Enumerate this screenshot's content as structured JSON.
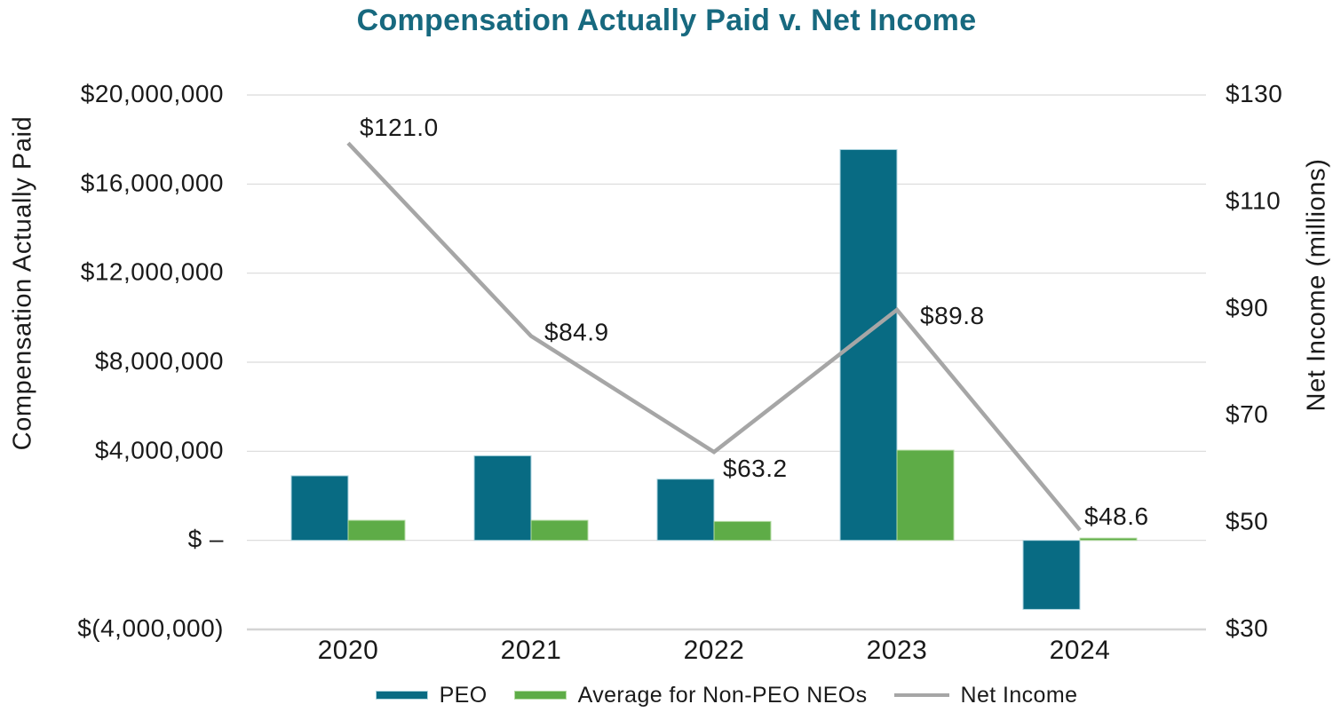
{
  "title": "Compensation Actually Paid v. Net Income",
  "colors": {
    "title": "#17697F",
    "peo_bar": "#086B83",
    "peo_bar_border": "#AFD6E0",
    "nonpeo_bar": "#5EAC47",
    "nonpeo_bar_border": "#B5DBA4",
    "net_income_line": "#A6A6A6",
    "gridline": "#D9D9D9",
    "axis_line": "#D4D4D4",
    "text": "#1A1A1A"
  },
  "left_axis": {
    "title": "Compensation Actually Paid",
    "min": -4000000,
    "max": 20000000,
    "ticks": [
      {
        "label": "$20,000,000",
        "value": 20000000
      },
      {
        "label": "$16,000,000",
        "value": 16000000
      },
      {
        "label": "$12,000,000",
        "value": 12000000
      },
      {
        "label": "$8,000,000",
        "value": 8000000
      },
      {
        "label": "$4,000,000",
        "value": 4000000
      },
      {
        "label": "$ –",
        "value": 0
      },
      {
        "label": "$(4,000,000)",
        "value": -4000000
      }
    ]
  },
  "right_axis": {
    "title": "Net Income (millions)",
    "min": 30,
    "max": 130,
    "ticks": [
      {
        "label": "$130",
        "value": 130
      },
      {
        "label": "$110",
        "value": 110
      },
      {
        "label": "$90",
        "value": 90
      },
      {
        "label": "$70",
        "value": 70
      },
      {
        "label": "$50",
        "value": 50
      },
      {
        "label": "$30",
        "value": 30
      }
    ]
  },
  "chart_data": {
    "type": "combo-bar-line",
    "categories": [
      "2020",
      "2021",
      "2022",
      "2023",
      "2024"
    ],
    "series": [
      {
        "name": "PEO",
        "type": "bar",
        "axis": "left",
        "values": [
          2900000,
          3800000,
          2750000,
          17550000,
          -3100000
        ]
      },
      {
        "name": "Average for Non-PEO NEOs",
        "type": "bar",
        "axis": "left",
        "values": [
          900000,
          900000,
          850000,
          4050000,
          100000
        ]
      },
      {
        "name": "Net Income",
        "type": "line",
        "axis": "right",
        "values": [
          121.0,
          84.9,
          63.2,
          89.8,
          48.6
        ],
        "point_labels": [
          "$121.0",
          "$84.9",
          "$63.2",
          "$89.8",
          "$48.6"
        ],
        "point_label_positions": [
          "above-right",
          "right-above",
          "below-right",
          "right",
          "above"
        ]
      }
    ],
    "left_ylim": [
      -4000000,
      20000000
    ],
    "right_ylim": [
      30,
      130
    ],
    "grid": true,
    "legend_position": "bottom"
  },
  "legend": {
    "items": [
      {
        "label": "PEO",
        "swatch": "bar"
      },
      {
        "label": "Average for Non-PEO NEOs",
        "swatch": "bar"
      },
      {
        "label": "Net Income",
        "swatch": "line"
      }
    ]
  }
}
